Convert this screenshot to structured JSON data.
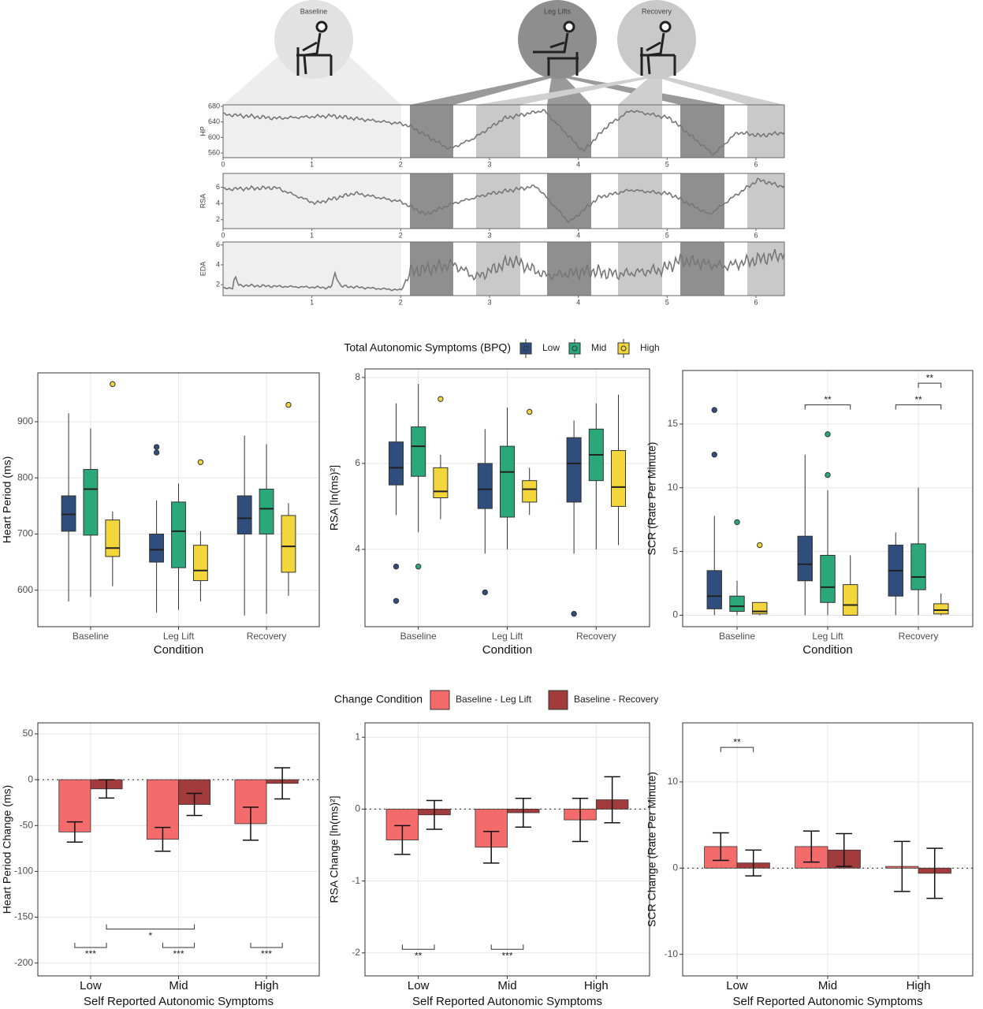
{
  "protocol": {
    "phases": [
      "Baseline",
      "Leg Lifts",
      "Recovery"
    ],
    "xlim": [
      0,
      6.32
    ],
    "signals": [
      {
        "name": "HP",
        "ylim": [
          548,
          684
        ],
        "yticks": [
          680,
          640,
          600,
          560
        ],
        "xticks": [
          0,
          1,
          2,
          3,
          4,
          5,
          6
        ]
      },
      {
        "name": "RSA",
        "ylim": [
          0.9,
          7.7
        ],
        "yticks": [
          6,
          4,
          2
        ],
        "xticks": [
          0,
          1,
          2,
          3,
          4,
          5,
          6
        ]
      },
      {
        "name": "EDA",
        "ylim": [
          0.9,
          6.3
        ],
        "yticks": [
          6,
          4,
          2
        ],
        "xticks": [
          1,
          2,
          3,
          4,
          5,
          6
        ]
      }
    ]
  },
  "box_legend": {
    "title": "Total Autonomic Symptoms (BPQ)",
    "items": [
      {
        "name": "Low",
        "color": "#2f4e7d"
      },
      {
        "name": "Mid",
        "color": "#2aa87a"
      },
      {
        "name": "High",
        "color": "#f3d53c"
      }
    ]
  },
  "bar_legend": {
    "title": "Change Condition",
    "items": [
      {
        "name": "Baseline - Leg Lift",
        "color": "#f46b6b"
      },
      {
        "name": "Baseline - Recovery",
        "color": "#a23c3c"
      }
    ]
  },
  "chart_data": [
    {
      "type": "box",
      "ylabel": "Heart Period (ms)",
      "xlabel": "Condition",
      "categories": [
        "Baseline",
        "Leg Lift",
        "Recovery"
      ],
      "ylim": [
        535,
        987
      ],
      "yticks": [
        600,
        700,
        800,
        900
      ],
      "boxes": [
        [
          {
            "min": 580,
            "q1": 705,
            "median": 735,
            "q3": 768,
            "max": 915
          },
          {
            "min": 560,
            "q1": 650,
            "median": 672,
            "q3": 700,
            "max": 760,
            "outliers": [
              845,
              855
            ]
          },
          {
            "min": 555,
            "q1": 700,
            "median": 728,
            "q3": 768,
            "max": 875
          }
        ],
        [
          {
            "min": 588,
            "q1": 698,
            "median": 780,
            "q3": 815,
            "max": 888
          },
          {
            "min": 565,
            "q1": 640,
            "median": 705,
            "q3": 757,
            "max": 790
          },
          {
            "min": 558,
            "q1": 700,
            "median": 745,
            "q3": 780,
            "max": 860
          }
        ],
        [
          {
            "min": 607,
            "q1": 660,
            "median": 675,
            "q3": 725,
            "max": 740,
            "outliers": [
              967
            ]
          },
          {
            "min": 580,
            "q1": 617,
            "median": 635,
            "q3": 680,
            "max": 705,
            "outliers": [
              828
            ]
          },
          {
            "min": 590,
            "q1": 632,
            "median": 678,
            "q3": 733,
            "max": 755,
            "outliers": [
              930
            ]
          }
        ]
      ]
    },
    {
      "type": "box",
      "ylabel": "RSA [ln(ms)²]",
      "xlabel": "Condition",
      "categories": [
        "Baseline",
        "Leg Lift",
        "Recovery"
      ],
      "ylim": [
        2.2,
        8.2
      ],
      "yticks": [
        4,
        6,
        8
      ],
      "boxes": [
        [
          {
            "min": 4.8,
            "q1": 5.5,
            "median": 5.9,
            "q3": 6.5,
            "max": 7.4,
            "outliers": [
              3.6,
              2.8
            ]
          },
          {
            "min": 3.9,
            "q1": 4.95,
            "median": 5.4,
            "q3": 6.0,
            "max": 6.8,
            "outliers": [
              3.0
            ]
          },
          {
            "min": 3.9,
            "q1": 5.1,
            "median": 6.0,
            "q3": 6.6,
            "max": 7.0,
            "outliers": [
              2.5
            ]
          }
        ],
        [
          {
            "min": 4.4,
            "q1": 5.7,
            "median": 6.4,
            "q3": 6.85,
            "max": 7.85,
            "outliers": [
              3.6
            ]
          },
          {
            "min": 4.0,
            "q1": 4.75,
            "median": 5.8,
            "q3": 6.4,
            "max": 7.3
          },
          {
            "min": 4.0,
            "q1": 5.6,
            "median": 6.2,
            "q3": 6.8,
            "max": 7.4
          }
        ],
        [
          {
            "min": 4.7,
            "q1": 5.2,
            "median": 5.35,
            "q3": 5.9,
            "max": 6.2,
            "outliers": [
              7.5
            ]
          },
          {
            "min": 4.8,
            "q1": 5.1,
            "median": 5.4,
            "q3": 5.6,
            "max": 5.9,
            "outliers": [
              7.2
            ]
          },
          {
            "min": 4.1,
            "q1": 5.0,
            "median": 5.45,
            "q3": 6.3,
            "max": 7.6
          }
        ]
      ]
    },
    {
      "type": "box",
      "ylabel": "SCR (Rate Per Minute)",
      "xlabel": "Condition",
      "categories": [
        "Baseline",
        "Leg Lift",
        "Recovery"
      ],
      "ylim": [
        -0.9,
        19.2
      ],
      "yticks": [
        0,
        5,
        10,
        15
      ],
      "boxes": [
        [
          {
            "min": 0,
            "q1": 0.5,
            "median": 1.5,
            "q3": 3.5,
            "max": 7.8,
            "outliers": [
              12.6,
              16.1
            ]
          },
          {
            "min": 0,
            "q1": 2.7,
            "median": 4.0,
            "q3": 6.2,
            "max": 12.6
          },
          {
            "min": 0,
            "q1": 1.5,
            "median": 3.5,
            "q3": 5.5,
            "max": 6.5
          }
        ],
        [
          {
            "min": 0,
            "q1": 0.3,
            "median": 0.7,
            "q3": 1.5,
            "max": 2.7,
            "outliers": [
              7.3
            ]
          },
          {
            "min": 0,
            "q1": 1.0,
            "median": 2.2,
            "q3": 4.7,
            "max": 9.8,
            "outliers": [
              11,
              14.2
            ]
          },
          {
            "min": 0,
            "q1": 2.0,
            "median": 3.0,
            "q3": 5.6,
            "max": 10.0
          }
        ],
        [
          {
            "min": 0,
            "q1": 0.1,
            "median": 0.3,
            "q3": 1.0,
            "max": 1.0,
            "outliers": [
              5.5
            ]
          },
          {
            "min": 0,
            "q1": 0,
            "median": 0.8,
            "q3": 2.4,
            "max": 4.7
          },
          {
            "min": 0,
            "q1": 0.1,
            "median": 0.4,
            "q3": 0.9,
            "max": 1.7
          }
        ]
      ],
      "annotations": [
        {
          "label": "**",
          "y": 16.5,
          "from": {
            "category": 1,
            "group": 0
          },
          "to": {
            "category": 1,
            "group": 2
          }
        },
        {
          "label": "**",
          "y": 16.5,
          "from": {
            "category": 2,
            "group": 0
          },
          "to": {
            "category": 2,
            "group": 2
          }
        },
        {
          "label": "**",
          "y": 18.2,
          "from": {
            "category": 2,
            "group": 1
          },
          "to": {
            "category": 2,
            "group": 2
          }
        }
      ]
    },
    {
      "type": "bar",
      "ylabel": "Heart Period Change (ms)",
      "xlabel": "Self Reported Autonomic Symptoms",
      "categories": [
        "Low",
        "Mid",
        "High"
      ],
      "ylim": [
        -214,
        62
      ],
      "yticks": [
        50,
        0,
        -50,
        -100,
        -150,
        -200
      ],
      "series": [
        {
          "values": [
            -57,
            -65,
            -48
          ],
          "errors": [
            11,
            13,
            18
          ]
        },
        {
          "values": [
            -10,
            -27,
            -4
          ],
          "errors": [
            10,
            12,
            17
          ]
        }
      ],
      "annotations": [
        {
          "label": "***",
          "y": -183,
          "from": {
            "category": 0,
            "group": 0
          },
          "to": {
            "category": 0,
            "group": 1
          }
        },
        {
          "label": "***",
          "y": -183,
          "from": {
            "category": 1,
            "group": 0
          },
          "to": {
            "category": 1,
            "group": 1
          }
        },
        {
          "label": "***",
          "y": -183,
          "from": {
            "category": 2,
            "group": 0
          },
          "to": {
            "category": 2,
            "group": 1
          }
        },
        {
          "label": "*",
          "y": -163,
          "from": {
            "category": 0,
            "group": 1
          },
          "to": {
            "category": 1,
            "group": 1
          }
        }
      ]
    },
    {
      "type": "bar",
      "ylabel": "RSA Change [ln(ms)²]",
      "xlabel": "Self Reported Autonomic Symptoms",
      "categories": [
        "Low",
        "Mid",
        "High"
      ],
      "ylim": [
        -2.32,
        1.2
      ],
      "yticks": [
        1,
        0,
        -1,
        -2
      ],
      "series": [
        {
          "values": [
            -0.43,
            -0.53,
            -0.15
          ],
          "errors": [
            0.2,
            0.22,
            0.3
          ]
        },
        {
          "values": [
            -0.08,
            -0.05,
            0.13
          ],
          "errors": [
            0.2,
            0.2,
            0.32
          ]
        }
      ],
      "annotations": [
        {
          "label": "**",
          "y": -1.95,
          "from": {
            "category": 0,
            "group": 0
          },
          "to": {
            "category": 0,
            "group": 1
          }
        },
        {
          "label": "***",
          "y": -1.95,
          "from": {
            "category": 1,
            "group": 0
          },
          "to": {
            "category": 1,
            "group": 1
          }
        }
      ]
    },
    {
      "type": "bar",
      "ylabel": "SCR Change (Rate Per Minute)",
      "xlabel": "Self Reported Autonomic Symptoms",
      "categories": [
        "Low",
        "Mid",
        "High"
      ],
      "ylim": [
        -12.5,
        16.85
      ],
      "yticks": [
        10,
        0,
        -10
      ],
      "series": [
        {
          "values": [
            2.5,
            2.5,
            0.2
          ],
          "errors": [
            1.6,
            1.8,
            2.9
          ]
        },
        {
          "values": [
            0.6,
            2.1,
            -0.6
          ],
          "errors": [
            1.5,
            1.9,
            2.9
          ]
        }
      ],
      "annotations": [
        {
          "label": "**",
          "y": 14,
          "from": {
            "category": 0,
            "group": 0
          },
          "to": {
            "category": 0,
            "group": 1
          }
        }
      ]
    }
  ]
}
